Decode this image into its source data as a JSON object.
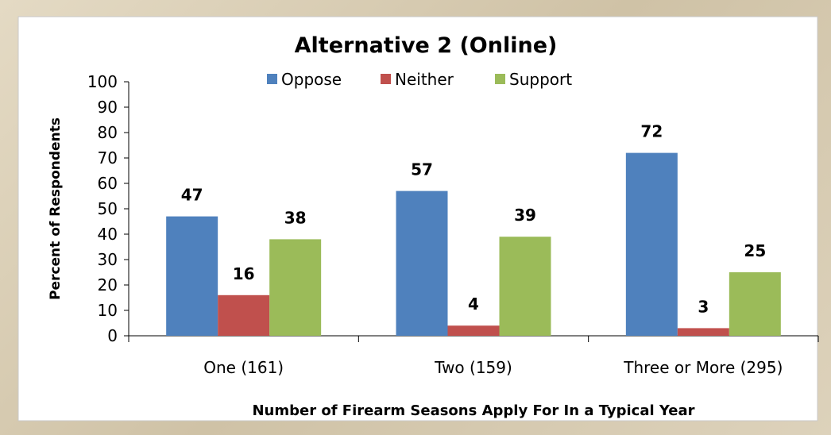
{
  "chart_data": {
    "type": "bar",
    "title": "Alternative 2 (Online)",
    "xlabel": "Number of Firearm Seasons Apply For In a Typical Year",
    "ylabel": "Percent of Respondents",
    "categories": [
      "One (161)",
      "Two (159)",
      "Three or More (295)"
    ],
    "series": [
      {
        "name": "Oppose",
        "color": "#4f81bd",
        "values": [
          47,
          57,
          72
        ]
      },
      {
        "name": "Neither",
        "color": "#c0504d",
        "values": [
          16,
          4,
          3
        ]
      },
      {
        "name": "Support",
        "color": "#9bbb59",
        "values": [
          38,
          39,
          25
        ]
      }
    ],
    "ylim": [
      0,
      100
    ],
    "yticks": [
      0,
      10,
      20,
      30,
      40,
      50,
      60,
      70,
      80,
      90,
      100
    ],
    "grid": false,
    "legend_position": "top"
  }
}
